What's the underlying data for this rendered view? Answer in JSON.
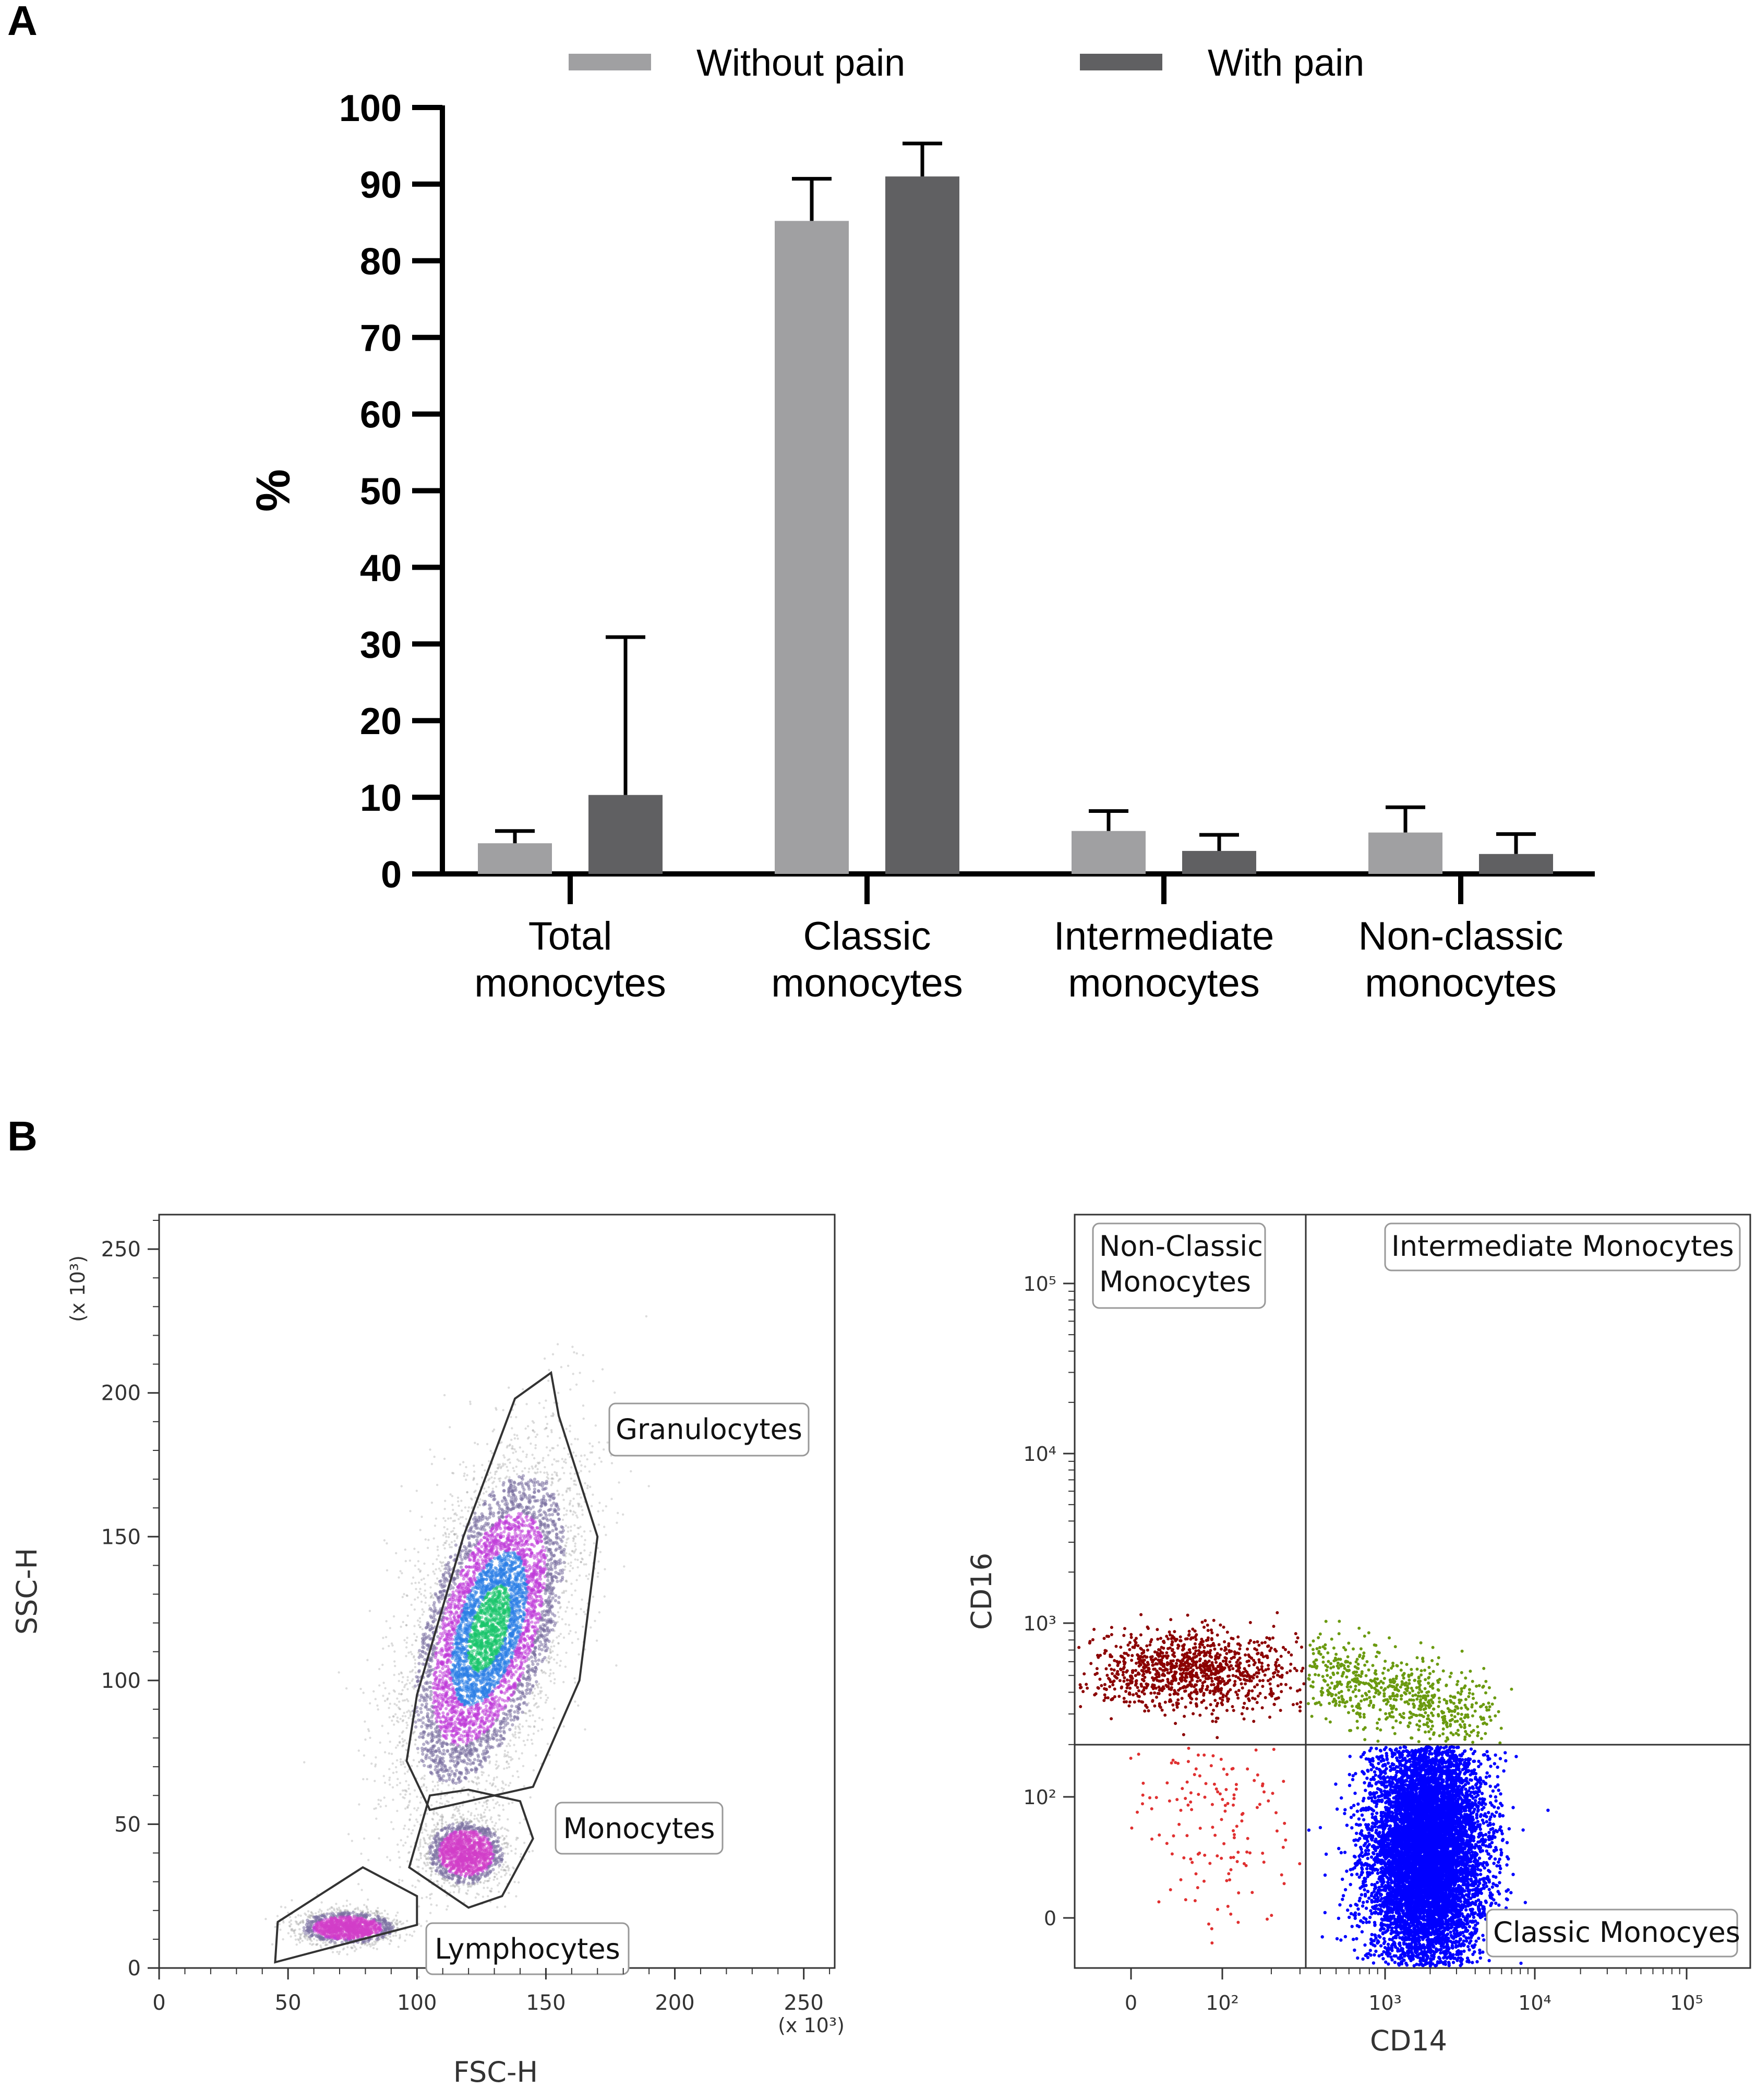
{
  "panel_labels": {
    "a": "A",
    "b": "B"
  },
  "chart_data": [
    {
      "type": "bar",
      "panel": "A",
      "categories": [
        "Total\nmonocytes",
        "Classic\nmonocytes",
        "Intermediate\nmonocytes",
        "Non-classic\nmonocytes"
      ],
      "series": [
        {
          "name": "Without pain",
          "color": "#a0a0a2",
          "values": [
            4.0,
            85.2,
            5.6,
            5.4
          ],
          "error": [
            1.6,
            5.5,
            2.6,
            3.3
          ]
        },
        {
          "name": "With pain",
          "color": "#606062",
          "values": [
            10.3,
            91.0,
            3.0,
            2.6
          ],
          "error": [
            20.6,
            4.3,
            2.1,
            2.6
          ]
        }
      ],
      "ylabel": "%",
      "xlabel": "",
      "ylim": [
        0,
        100
      ],
      "yticks": [
        0,
        10,
        20,
        30,
        40,
        50,
        60,
        70,
        80,
        90,
        100
      ],
      "legend": "top",
      "grid": false
    },
    {
      "type": "scatter",
      "panel": "B-left",
      "xlabel": "FSC-H",
      "ylabel": "SSC-H",
      "xlim": [
        0,
        262
      ],
      "ylim": [
        0,
        262
      ],
      "xticks": [
        0,
        50,
        100,
        150,
        200,
        250
      ],
      "yticks": [
        0,
        50,
        100,
        150,
        200,
        250
      ],
      "x_multiplier": "(x 10³)",
      "y_multiplier": "(x 10³)",
      "gates": [
        {
          "name": "Granulocytes",
          "polygon": [
            [
              105,
              55
            ],
            [
              145,
              63
            ],
            [
              163,
              100
            ],
            [
              170,
              150
            ],
            [
              155,
              192
            ],
            [
              152,
              207
            ],
            [
              138,
              198
            ],
            [
              118,
              150
            ],
            [
              100,
              95
            ],
            [
              96,
              72
            ]
          ]
        },
        {
          "name": "Monocytes",
          "polygon": [
            [
              105,
              60
            ],
            [
              120,
              62
            ],
            [
              140,
              58
            ],
            [
              145,
              45
            ],
            [
              133,
              25
            ],
            [
              120,
              21
            ],
            [
              97,
              35
            ]
          ]
        },
        {
          "name": "Lymphocytes",
          "polygon": [
            [
              45,
              2
            ],
            [
              100,
              15
            ],
            [
              100,
              25
            ],
            [
              79,
              35
            ],
            [
              46,
              16
            ]
          ]
        }
      ],
      "populations": [
        {
          "name": "Granulocytes",
          "center": [
            128,
            118
          ],
          "spread": [
            14,
            30
          ]
        },
        {
          "name": "Monocytes",
          "center": [
            119,
            40
          ],
          "spread": [
            8,
            6
          ]
        },
        {
          "name": "Lymphocytes",
          "center": [
            73,
            14
          ],
          "spread": [
            10,
            3
          ]
        }
      ]
    },
    {
      "type": "scatter",
      "panel": "B-right",
      "xlabel": "CD14",
      "ylabel": "CD16",
      "x_scale": "biexponential",
      "y_scale": "biexponential",
      "xticks": [
        "0",
        "10²",
        "10³",
        "10⁴",
        "10⁵"
      ],
      "yticks": [
        "0",
        "10²",
        "10³",
        "10⁴",
        "10⁵"
      ],
      "quadrants": [
        {
          "name": "Non-Classic Monocytes",
          "color": "#8b0000"
        },
        {
          "name": "Intermediate Monocytes",
          "color": "#6b9a10"
        },
        {
          "name": "Classic Monocyes",
          "color": "#0000ff"
        },
        {
          "name": "",
          "color": "#e03030"
        }
      ]
    }
  ]
}
